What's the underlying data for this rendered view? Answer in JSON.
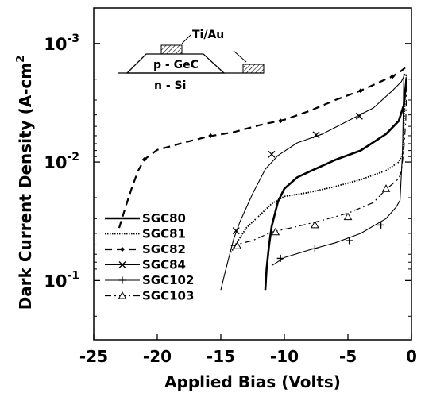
{
  "chart_data": {
    "type": "line",
    "xlabel": "Applied Bias (Volts)",
    "ylabel": "Dark Current Density (A-cm",
    "ylabel_sup": "2",
    "xlim": [
      -25,
      0
    ],
    "x_ticks": [
      -25,
      -20,
      -15,
      -10,
      -5,
      0
    ],
    "x_tick_labels": [
      "-25",
      "-20",
      "-15",
      "-10",
      "-5",
      "0"
    ],
    "y_scale": "log",
    "y_inverted": true,
    "y_ticks": [
      {
        "value": 0.001,
        "base": "10",
        "exp": "-3"
      },
      {
        "value": 0.01,
        "base": "10",
        "exp": "-2"
      },
      {
        "value": 0.1,
        "base": "10",
        "exp": "-1"
      }
    ],
    "grid": false,
    "legend_position": "lower-left",
    "inset": {
      "labels": [
        "Ti/Au",
        "p - GeC",
        "n - Si"
      ]
    },
    "series": [
      {
        "name": "SGC80",
        "style": "solid-thick",
        "marker": "none",
        "points": [
          [
            -11.5,
            0.12
          ],
          [
            -11.4,
            0.08
          ],
          [
            -11.2,
            0.05
          ],
          [
            -11.0,
            0.035
          ],
          [
            -10.5,
            0.0215
          ],
          [
            -10.0,
            0.0168
          ],
          [
            -9,
            0.0135
          ],
          [
            -8,
            0.012
          ],
          [
            -6,
            0.0096
          ],
          [
            -4,
            0.008
          ],
          [
            -2,
            0.0058
          ],
          [
            -1,
            0.0045
          ],
          [
            -0.6,
            0.0033
          ],
          [
            -0.4,
            0.002
          ]
        ]
      },
      {
        "name": "SGC81",
        "style": "dotted",
        "marker": "none",
        "points": [
          [
            -14.2,
            0.058
          ],
          [
            -13.8,
            0.049
          ],
          [
            -13,
            0.036
          ],
          [
            -12,
            0.0285
          ],
          [
            -11,
            0.0225
          ],
          [
            -10,
            0.0195
          ],
          [
            -8,
            0.018
          ],
          [
            -6,
            0.0161
          ],
          [
            -4,
            0.0141
          ],
          [
            -2,
            0.0118
          ],
          [
            -1,
            0.01
          ],
          [
            -0.7,
            0.0085
          ],
          [
            -0.5,
            0.0028
          ],
          [
            -0.4,
            0.0018
          ]
        ]
      },
      {
        "name": "SGC82",
        "style": "dashed",
        "marker": "filled-diamond",
        "points": [
          [
            -23,
            0.036
          ],
          [
            -22.5,
            0.024
          ],
          [
            -22,
            0.0165
          ],
          [
            -21.5,
            0.0118
          ],
          [
            -21,
            0.0095
          ],
          [
            -20,
            0.0079
          ],
          [
            -18,
            0.0069
          ],
          [
            -16,
            0.0061
          ],
          [
            -14,
            0.0056
          ],
          [
            -12,
            0.0049
          ],
          [
            -10,
            0.0044
          ],
          [
            -8,
            0.0037
          ],
          [
            -6,
            0.003
          ],
          [
            -4,
            0.0025
          ],
          [
            -2,
            0.002
          ],
          [
            -1.5,
            0.0019
          ],
          [
            -0.8,
            0.0017
          ],
          [
            -0.5,
            0.0016
          ]
        ],
        "markers": [
          [
            -21,
            0.0095
          ],
          [
            -15.8,
            0.006
          ],
          [
            -10.3,
            0.0045
          ],
          [
            -4,
            0.0025
          ],
          [
            -1.5,
            0.0019
          ]
        ]
      },
      {
        "name": "SGC84",
        "style": "solid-thin",
        "marker": "x",
        "points": [
          [
            -15,
            0.12
          ],
          [
            -14.6,
            0.08
          ],
          [
            -14,
            0.045
          ],
          [
            -13.5,
            0.032
          ],
          [
            -12.5,
            0.0185
          ],
          [
            -11.5,
            0.0115
          ],
          [
            -10.5,
            0.0088
          ],
          [
            -9,
            0.0069
          ],
          [
            -7,
            0.0058
          ],
          [
            -5,
            0.0045
          ],
          [
            -3,
            0.0035
          ],
          [
            -1.5,
            0.0025
          ],
          [
            -0.8,
            0.0021
          ],
          [
            -0.5,
            0.0018
          ]
        ],
        "markers": [
          [
            -13.8,
            0.038
          ],
          [
            -11,
            0.0086
          ],
          [
            -7.5,
            0.0059
          ],
          [
            -4.1,
            0.0041
          ]
        ]
      },
      {
        "name": "SGC102",
        "style": "solid-thin",
        "marker": "plus",
        "points": [
          [
            -11,
            0.075
          ],
          [
            -10,
            0.064
          ],
          [
            -8,
            0.055
          ],
          [
            -6,
            0.048
          ],
          [
            -4,
            0.04
          ],
          [
            -2,
            0.03
          ],
          [
            -1.2,
            0.024
          ],
          [
            -0.9,
            0.021
          ],
          [
            -0.7,
            0.008
          ],
          [
            -0.6,
            0.0018
          ]
        ],
        "markers": [
          [
            -10.3,
            0.065
          ],
          [
            -7.6,
            0.054
          ],
          [
            -4.9,
            0.046
          ],
          [
            -2.4,
            0.034
          ]
        ]
      },
      {
        "name": "SGC103",
        "style": "dash-dot",
        "marker": "open-triangle",
        "points": [
          [
            -14.2,
            0.051
          ],
          [
            -12.5,
            0.046
          ],
          [
            -11,
            0.039
          ],
          [
            -9,
            0.035
          ],
          [
            -7,
            0.031
          ],
          [
            -5,
            0.027
          ],
          [
            -3,
            0.022
          ],
          [
            -2,
            0.017
          ],
          [
            -1,
            0.0138
          ],
          [
            -0.8,
            0.012
          ],
          [
            -0.6,
            0.0078
          ],
          [
            -0.45,
            0.0045
          ],
          [
            -0.35,
            0.0018
          ]
        ],
        "markers": [
          [
            -13.7,
            0.051
          ],
          [
            -10.7,
            0.039
          ],
          [
            -7.6,
            0.034
          ],
          [
            -5,
            0.029
          ],
          [
            -2,
            0.0168
          ]
        ]
      }
    ]
  }
}
